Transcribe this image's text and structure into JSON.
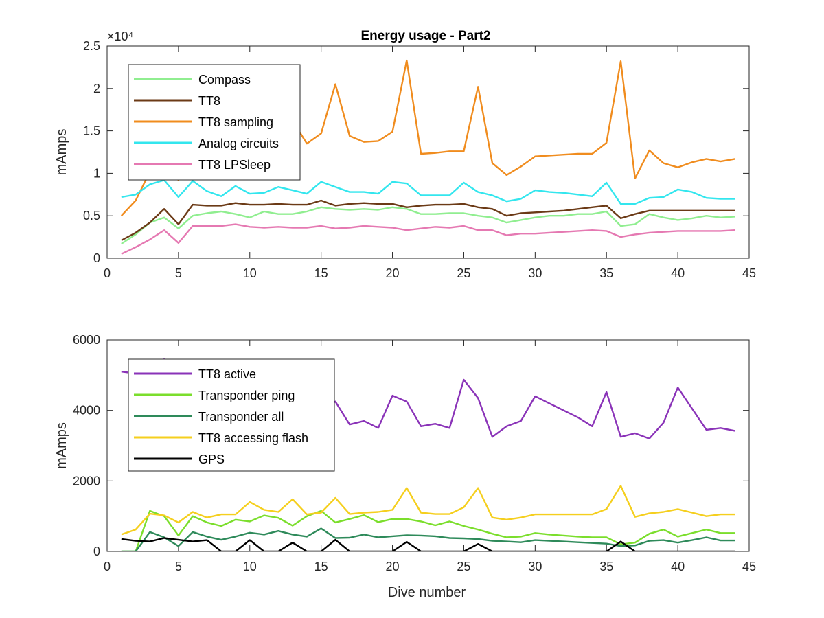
{
  "figure_title": "Energy usage - Part2",
  "colors": {
    "Compass": "#90ee90",
    "TT8": "#6b3a16",
    "TT8 sampling": "#f08c1e",
    "Analog circuits": "#33e6ee",
    "TT8 LPSleep": "#e579b2",
    "TT8 active": "#8a33b8",
    "Transponder ping": "#7bde2c",
    "Transponder all": "#2e8a5a",
    "TT8 accessing flash": "#f5cf1e",
    "GPS": "#000000"
  },
  "chart_data": [
    {
      "type": "line",
      "title": "Energy usage - Part2",
      "xlabel": "",
      "ylabel": "mAmps",
      "exponent_label": "×10⁴",
      "xlim": [
        0,
        45
      ],
      "ylim": [
        0,
        2.5
      ],
      "x_ticks": [
        0,
        5,
        10,
        15,
        20,
        25,
        30,
        35,
        40,
        45
      ],
      "y_ticks": [
        0,
        0.5,
        1,
        1.5,
        2,
        2.5
      ],
      "grid": false,
      "legend_position": "top-left",
      "x": [
        1,
        2,
        3,
        4,
        5,
        6,
        7,
        8,
        9,
        10,
        11,
        12,
        13,
        14,
        15,
        16,
        17,
        18,
        19,
        20,
        21,
        22,
        23,
        24,
        25,
        26,
        27,
        28,
        29,
        30,
        31,
        32,
        33,
        34,
        35,
        36,
        37,
        38,
        39,
        40,
        41,
        42,
        43,
        44
      ],
      "series": [
        {
          "name": "Compass",
          "values": [
            0.17,
            0.28,
            0.42,
            0.48,
            0.35,
            0.5,
            0.53,
            0.55,
            0.52,
            0.48,
            0.55,
            0.52,
            0.52,
            0.55,
            0.6,
            0.58,
            0.57,
            0.58,
            0.57,
            0.6,
            0.58,
            0.52,
            0.52,
            0.53,
            0.53,
            0.5,
            0.48,
            0.42,
            0.45,
            0.48,
            0.5,
            0.5,
            0.52,
            0.52,
            0.55,
            0.38,
            0.4,
            0.52,
            0.48,
            0.45,
            0.47,
            0.5,
            0.48,
            0.49
          ]
        },
        {
          "name": "TT8",
          "values": [
            0.21,
            0.3,
            0.42,
            0.58,
            0.4,
            0.63,
            0.62,
            0.62,
            0.65,
            0.63,
            0.63,
            0.64,
            0.63,
            0.63,
            0.68,
            0.62,
            0.64,
            0.65,
            0.64,
            0.64,
            0.6,
            0.62,
            0.63,
            0.63,
            0.64,
            0.6,
            0.58,
            0.5,
            0.53,
            0.54,
            0.55,
            0.56,
            0.58,
            0.6,
            0.62,
            0.47,
            0.52,
            0.56,
            0.56,
            0.56,
            0.56,
            0.56,
            0.56,
            0.56
          ]
        },
        {
          "name": "TT8 sampling",
          "values": [
            0.5,
            0.68,
            1.02,
            1.09,
            0.92,
            1.4,
            1.39,
            1.49,
            1.41,
            1.36,
            1.47,
            1.49,
            1.62,
            1.35,
            1.47,
            2.05,
            1.44,
            1.37,
            1.38,
            1.49,
            2.33,
            1.23,
            1.24,
            1.26,
            1.26,
            2.02,
            1.12,
            0.98,
            1.08,
            1.2,
            1.21,
            1.22,
            1.23,
            1.23,
            1.36,
            2.32,
            0.94,
            1.27,
            1.12,
            1.07,
            1.13,
            1.17,
            1.14,
            1.17
          ]
        },
        {
          "name": "Analog circuits",
          "values": [
            0.72,
            0.75,
            0.87,
            0.92,
            0.72,
            0.91,
            0.79,
            0.73,
            0.85,
            0.76,
            0.77,
            0.84,
            0.8,
            0.76,
            0.9,
            0.84,
            0.78,
            0.78,
            0.76,
            0.9,
            0.88,
            0.74,
            0.74,
            0.74,
            0.89,
            0.78,
            0.74,
            0.67,
            0.7,
            0.8,
            0.78,
            0.77,
            0.75,
            0.73,
            0.89,
            0.64,
            0.64,
            0.71,
            0.72,
            0.81,
            0.78,
            0.71,
            0.7,
            0.7
          ]
        },
        {
          "name": "TT8 LPSleep",
          "values": [
            0.05,
            0.13,
            0.22,
            0.33,
            0.18,
            0.38,
            0.38,
            0.38,
            0.4,
            0.37,
            0.36,
            0.37,
            0.36,
            0.36,
            0.38,
            0.35,
            0.36,
            0.38,
            0.37,
            0.36,
            0.33,
            0.35,
            0.37,
            0.36,
            0.38,
            0.33,
            0.33,
            0.27,
            0.29,
            0.29,
            0.3,
            0.31,
            0.32,
            0.33,
            0.32,
            0.25,
            0.28,
            0.3,
            0.31,
            0.32,
            0.32,
            0.32,
            0.32,
            0.33
          ]
        }
      ]
    },
    {
      "type": "line",
      "title": "",
      "xlabel": "Dive number",
      "ylabel": "mAmps",
      "xlim": [
        0,
        45
      ],
      "ylim": [
        0,
        6000
      ],
      "x_ticks": [
        0,
        5,
        10,
        15,
        20,
        25,
        30,
        35,
        40,
        45
      ],
      "y_ticks": [
        0,
        2000,
        4000,
        6000
      ],
      "grid": false,
      "legend_position": "top-left",
      "x": [
        1,
        2,
        3,
        4,
        5,
        6,
        7,
        8,
        9,
        10,
        11,
        12,
        13,
        14,
        15,
        16,
        17,
        18,
        19,
        20,
        21,
        22,
        23,
        24,
        25,
        26,
        27,
        28,
        29,
        30,
        31,
        32,
        33,
        34,
        35,
        36,
        37,
        38,
        39,
        40,
        41,
        42,
        43,
        44
      ],
      "series": [
        {
          "name": "TT8 active",
          "values": [
            5100,
            5050,
            5200,
            5450,
            4900,
            4700,
            4500,
            4300,
            4200,
            4100,
            4000,
            3900,
            3800,
            3850,
            4000,
            4250,
            3600,
            3700,
            3500,
            4420,
            4250,
            3550,
            3620,
            3500,
            4870,
            4350,
            3250,
            3550,
            3700,
            4400,
            4200,
            4000,
            3800,
            3550,
            4520,
            3250,
            3350,
            3200,
            3650,
            4650,
            4050,
            3450,
            3500,
            3420
          ]
        },
        {
          "name": "Transponder ping",
          "values": [
            0,
            0,
            1150,
            1000,
            450,
            1000,
            820,
            720,
            900,
            850,
            1020,
            950,
            730,
            1000,
            1150,
            820,
            920,
            1030,
            830,
            920,
            920,
            850,
            740,
            850,
            720,
            620,
            500,
            400,
            420,
            520,
            480,
            450,
            420,
            400,
            400,
            200,
            250,
            500,
            620,
            420,
            520,
            620,
            520,
            520
          ]
        },
        {
          "name": "Transponder all",
          "values": [
            0,
            0,
            550,
            400,
            150,
            550,
            420,
            330,
            420,
            530,
            480,
            580,
            480,
            420,
            650,
            380,
            390,
            480,
            400,
            430,
            460,
            450,
            430,
            380,
            370,
            350,
            300,
            280,
            260,
            320,
            300,
            280,
            260,
            240,
            220,
            150,
            170,
            300,
            320,
            250,
            320,
            400,
            310,
            310
          ]
        },
        {
          "name": "TT8 accessing flash",
          "values": [
            480,
            620,
            1070,
            1020,
            820,
            1120,
            960,
            1050,
            1050,
            1400,
            1180,
            1120,
            1480,
            1050,
            1100,
            1520,
            1060,
            1100,
            1120,
            1180,
            1800,
            1100,
            1060,
            1060,
            1250,
            1800,
            960,
            900,
            960,
            1050,
            1050,
            1050,
            1050,
            1050,
            1200,
            1860,
            980,
            1080,
            1120,
            1200,
            1100,
            1000,
            1050,
            1050
          ]
        },
        {
          "name": "GPS",
          "values": [
            350,
            300,
            280,
            380,
            330,
            280,
            320,
            0,
            0,
            320,
            0,
            0,
            250,
            0,
            0,
            330,
            0,
            0,
            0,
            0,
            270,
            0,
            0,
            0,
            0,
            210,
            0,
            0,
            0,
            0,
            0,
            0,
            0,
            0,
            0,
            280,
            0,
            0,
            0,
            0,
            0,
            0,
            0,
            0
          ]
        }
      ]
    }
  ]
}
